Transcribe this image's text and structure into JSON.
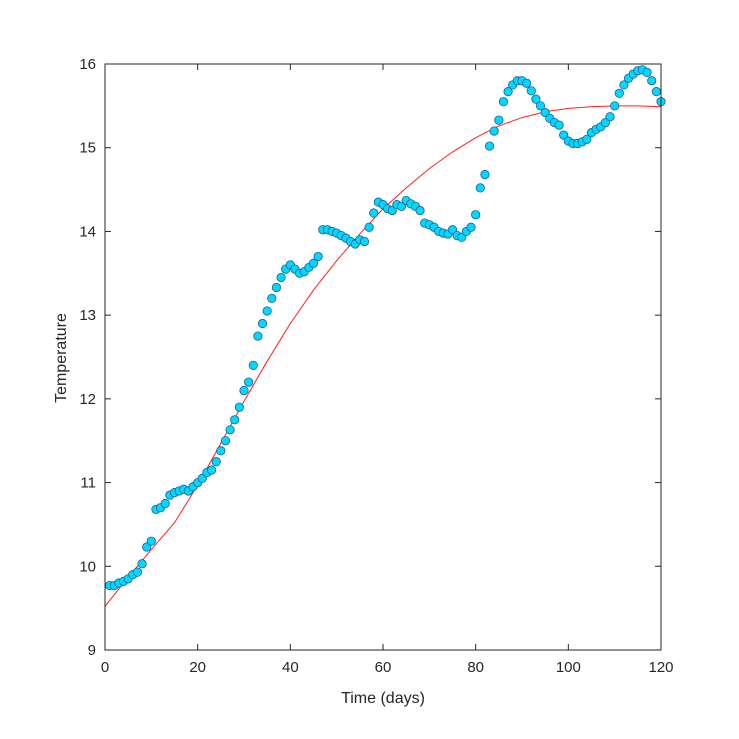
{
  "chart_data": {
    "type": "scatter",
    "xlabel": "Time (days)",
    "ylabel": "Temperature",
    "xlim": [
      0,
      120
    ],
    "ylim": [
      9,
      16
    ],
    "xticks": [
      0,
      20,
      40,
      60,
      80,
      100,
      120
    ],
    "yticks": [
      9,
      10,
      11,
      12,
      13,
      14,
      15,
      16
    ],
    "grid": false,
    "colors": {
      "marker_fill": "#00d8ff",
      "marker_edge": "#1f5f8b",
      "fit_line": "#ff2020",
      "axes": "#262626"
    },
    "series": [
      {
        "type": "scatter",
        "x": [
          1,
          2,
          3,
          4,
          5,
          6,
          7,
          8,
          9,
          10,
          11,
          12,
          13,
          14,
          15,
          16,
          17,
          18,
          19,
          20,
          21,
          22,
          23,
          24,
          25,
          26,
          27,
          28,
          29,
          30,
          31,
          32,
          33,
          34,
          35,
          36,
          37,
          38,
          39,
          40,
          41,
          42,
          43,
          44,
          45,
          46,
          47,
          48,
          49,
          50,
          51,
          52,
          53,
          54,
          55,
          56,
          57,
          58,
          59,
          60,
          61,
          62,
          63,
          64,
          65,
          66,
          67,
          68,
          69,
          70,
          71,
          72,
          73,
          74,
          75,
          76,
          77,
          78,
          79,
          80,
          81,
          82,
          83,
          84,
          85,
          86,
          87,
          88,
          89,
          90,
          91,
          92,
          93,
          94,
          95,
          96,
          97,
          98,
          99,
          100,
          101,
          102,
          103,
          104,
          105,
          106,
          107,
          108,
          109,
          110,
          111,
          112,
          113,
          114,
          115,
          116,
          117,
          118,
          119,
          120
        ],
        "y": [
          9.77,
          9.77,
          9.8,
          9.82,
          9.85,
          9.9,
          9.93,
          10.03,
          10.23,
          10.3,
          10.68,
          10.7,
          10.75,
          10.85,
          10.88,
          10.9,
          10.92,
          10.9,
          10.95,
          11.0,
          11.05,
          11.12,
          11.15,
          11.25,
          11.38,
          11.5,
          11.63,
          11.75,
          11.9,
          12.1,
          12.2,
          12.4,
          12.75,
          12.9,
          13.05,
          13.2,
          13.33,
          13.45,
          13.55,
          13.6,
          13.55,
          13.5,
          13.52,
          13.57,
          13.62,
          13.7,
          14.02,
          14.02,
          14.0,
          13.98,
          13.95,
          13.92,
          13.88,
          13.85,
          13.9,
          13.88,
          14.05,
          14.22,
          14.35,
          14.32,
          14.27,
          14.25,
          14.32,
          14.3,
          14.37,
          14.33,
          14.3,
          14.25,
          14.1,
          14.08,
          14.05,
          14.0,
          13.98,
          13.97,
          14.02,
          13.95,
          13.93,
          14.0,
          14.05,
          14.2,
          14.52,
          14.68,
          15.02,
          15.2,
          15.33,
          15.55,
          15.67,
          15.75,
          15.8,
          15.8,
          15.77,
          15.68,
          15.58,
          15.5,
          15.42,
          15.35,
          15.3,
          15.27,
          15.15,
          15.08,
          15.05,
          15.05,
          15.07,
          15.1,
          15.18,
          15.22,
          15.25,
          15.3,
          15.37,
          15.5,
          15.65,
          15.75,
          15.83,
          15.88,
          15.92,
          15.93,
          15.9,
          15.8,
          15.67,
          15.55
        ]
      },
      {
        "type": "line",
        "x": [
          0,
          5,
          10,
          15,
          20,
          25,
          30,
          35,
          40,
          45,
          50,
          55,
          60,
          65,
          70,
          75,
          80,
          85,
          90,
          95,
          100,
          105,
          110,
          115,
          120
        ],
        "y": [
          9.52,
          9.87,
          10.2,
          10.52,
          10.97,
          11.47,
          11.97,
          12.45,
          12.9,
          13.3,
          13.65,
          13.97,
          14.27,
          14.52,
          14.75,
          14.95,
          15.12,
          15.26,
          15.36,
          15.43,
          15.47,
          15.49,
          15.5,
          15.5,
          15.49
        ]
      }
    ]
  }
}
